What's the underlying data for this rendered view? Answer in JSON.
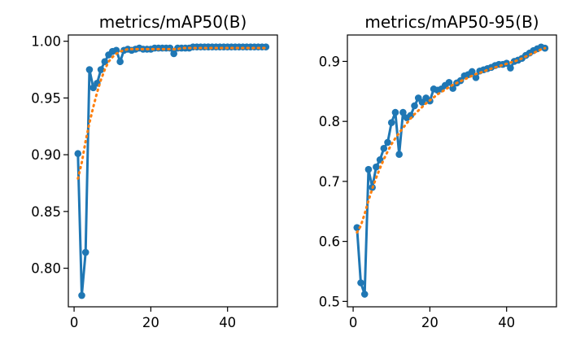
{
  "chart_data": [
    {
      "type": "line",
      "title": "metrics/mAP50(B)",
      "xlim": [
        -1.5,
        53
      ],
      "ylim": [
        0.766,
        1.0055
      ],
      "xticks": [
        0,
        20,
        40
      ],
      "yticks": [
        0.8,
        0.85,
        0.9,
        0.95,
        1.0
      ],
      "ytick_labels": [
        "0.80",
        "0.85",
        "0.90",
        "0.95",
        "1.00"
      ],
      "grid": false,
      "series": [
        {
          "role": "results",
          "color": "#1f77b4",
          "marker": "circle",
          "x": [
            1,
            2,
            3,
            4,
            5,
            6,
            7,
            8,
            9,
            10,
            11,
            12,
            13,
            14,
            15,
            16,
            17,
            18,
            19,
            20,
            21,
            22,
            23,
            24,
            25,
            26,
            27,
            28,
            29,
            30,
            31,
            32,
            33,
            34,
            35,
            36,
            37,
            38,
            39,
            40,
            41,
            42,
            43,
            44,
            45,
            46,
            47,
            48,
            49,
            50
          ],
          "y": [
            0.901,
            0.776,
            0.814,
            0.975,
            0.959,
            0.963,
            0.975,
            0.982,
            0.988,
            0.991,
            0.992,
            0.982,
            0.992,
            0.993,
            0.992,
            0.993,
            0.994,
            0.993,
            0.993,
            0.993,
            0.994,
            0.994,
            0.994,
            0.994,
            0.994,
            0.989,
            0.994,
            0.994,
            0.994,
            0.994,
            0.995,
            0.995,
            0.995,
            0.995,
            0.995,
            0.995,
            0.995,
            0.995,
            0.995,
            0.995,
            0.995,
            0.995,
            0.995,
            0.995,
            0.995,
            0.995,
            0.995,
            0.995,
            0.995,
            0.995
          ]
        },
        {
          "role": "smooth",
          "color": "#ff7f0e",
          "x": [
            1,
            2,
            3,
            4,
            5,
            6,
            7,
            8,
            9,
            10,
            11,
            12,
            13,
            14,
            15,
            16,
            17,
            18,
            19,
            20,
            21,
            22,
            23,
            24,
            25,
            26,
            27,
            28,
            29,
            30,
            31,
            32,
            33,
            34,
            35,
            36,
            37,
            38,
            39,
            40,
            41,
            42,
            43,
            44,
            45,
            46,
            47,
            48,
            49,
            50
          ],
          "y": [
            0.879,
            0.893,
            0.912,
            0.928,
            0.942,
            0.955,
            0.966,
            0.975,
            0.982,
            0.986,
            0.989,
            0.991,
            0.992,
            0.993,
            0.993,
            0.993,
            0.993,
            0.993,
            0.993,
            0.993,
            0.993,
            0.993,
            0.993,
            0.993,
            0.993,
            0.993,
            0.993,
            0.994,
            0.994,
            0.994,
            0.994,
            0.994,
            0.994,
            0.994,
            0.994,
            0.994,
            0.994,
            0.994,
            0.994,
            0.994,
            0.994,
            0.994,
            0.994,
            0.994,
            0.994,
            0.994,
            0.994,
            0.994,
            0.994,
            0.994
          ]
        }
      ]
    },
    {
      "type": "line",
      "title": "metrics/mAP50-95(B)",
      "xlim": [
        -1.5,
        53
      ],
      "ylim": [
        0.491,
        0.944
      ],
      "xticks": [
        0,
        20,
        40
      ],
      "yticks": [
        0.5,
        0.6,
        0.7,
        0.8,
        0.9
      ],
      "ytick_labels": [
        "0.5",
        "0.6",
        "0.7",
        "0.8",
        "0.9"
      ],
      "grid": false,
      "series": [
        {
          "role": "results",
          "color": "#1f77b4",
          "marker": "circle",
          "x": [
            1,
            2,
            3,
            4,
            5,
            6,
            7,
            8,
            9,
            10,
            11,
            12,
            13,
            14,
            15,
            16,
            17,
            18,
            19,
            20,
            21,
            22,
            23,
            24,
            25,
            26,
            27,
            28,
            29,
            30,
            31,
            32,
            33,
            34,
            35,
            36,
            37,
            38,
            39,
            40,
            41,
            42,
            43,
            44,
            45,
            46,
            47,
            48,
            49,
            50
          ],
          "y": [
            0.623,
            0.531,
            0.512,
            0.72,
            0.69,
            0.724,
            0.736,
            0.755,
            0.765,
            0.798,
            0.815,
            0.745,
            0.815,
            0.806,
            0.81,
            0.826,
            0.839,
            0.832,
            0.839,
            0.834,
            0.854,
            0.852,
            0.854,
            0.86,
            0.865,
            0.855,
            0.864,
            0.868,
            0.876,
            0.878,
            0.883,
            0.873,
            0.884,
            0.886,
            0.888,
            0.89,
            0.893,
            0.895,
            0.895,
            0.897,
            0.889,
            0.9,
            0.902,
            0.905,
            0.91,
            0.914,
            0.918,
            0.921,
            0.924,
            0.922
          ]
        },
        {
          "role": "smooth",
          "color": "#ff7f0e",
          "x": [
            1,
            2,
            3,
            4,
            5,
            6,
            7,
            8,
            9,
            10,
            11,
            12,
            13,
            14,
            15,
            16,
            17,
            18,
            19,
            20,
            21,
            22,
            23,
            24,
            25,
            26,
            27,
            28,
            29,
            30,
            31,
            32,
            33,
            34,
            35,
            36,
            37,
            38,
            39,
            40,
            41,
            42,
            43,
            44,
            45,
            46,
            47,
            48,
            49,
            50
          ],
          "y": [
            0.615,
            0.626,
            0.646,
            0.668,
            0.688,
            0.706,
            0.722,
            0.737,
            0.75,
            0.762,
            0.772,
            0.781,
            0.789,
            0.797,
            0.805,
            0.812,
            0.818,
            0.824,
            0.83,
            0.835,
            0.84,
            0.845,
            0.849,
            0.853,
            0.857,
            0.861,
            0.864,
            0.867,
            0.87,
            0.873,
            0.876,
            0.879,
            0.881,
            0.883,
            0.886,
            0.888,
            0.89,
            0.892,
            0.894,
            0.896,
            0.898,
            0.9,
            0.902,
            0.905,
            0.908,
            0.911,
            0.914,
            0.917,
            0.92,
            0.922
          ]
        }
      ]
    }
  ]
}
